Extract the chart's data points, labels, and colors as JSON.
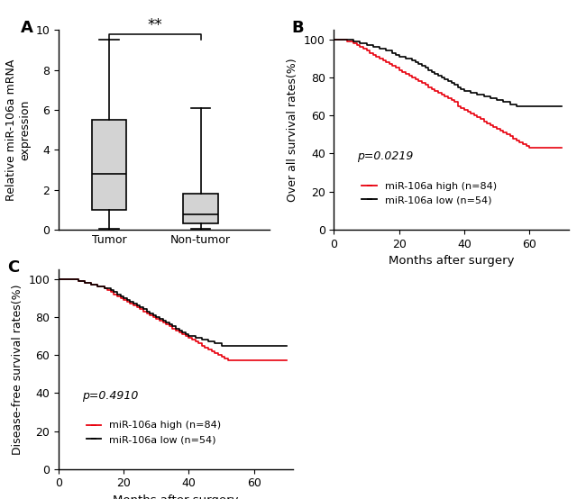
{
  "panel_A": {
    "label": "A",
    "ylabel": "Relative miR-106a mRNA\nexpression",
    "categories": [
      "Tumor",
      "Non-tumor"
    ],
    "tumor_stats": {
      "whisker_low": 0.05,
      "q1": 1.0,
      "median": 2.8,
      "q3": 5.5,
      "whisker_high": 9.5
    },
    "nontumor_stats": {
      "whisker_low": 0.05,
      "q1": 0.3,
      "median": 0.75,
      "q3": 1.8,
      "whisker_high": 6.1
    },
    "ylim": [
      0,
      10
    ],
    "yticks": [
      0,
      2,
      4,
      6,
      8,
      10
    ],
    "significance": "**",
    "box_color": "#d3d3d3",
    "box_edge_color": "#000000"
  },
  "panel_B": {
    "label": "B",
    "ylabel": "Over all survival rates(%)",
    "xlabel": "Months after surgery",
    "ylim": [
      0,
      105
    ],
    "xlim": [
      0,
      72
    ],
    "yticks": [
      0,
      20,
      40,
      60,
      80,
      100
    ],
    "xticks": [
      0,
      20,
      40,
      60
    ],
    "pvalue": "p=0.0219",
    "legend_high": "miR-106a high (n=84)",
    "legend_low": "miR-106a low (n=54)",
    "color_high": "#e8000d",
    "color_low": "#000000",
    "high_x": [
      0,
      2,
      4,
      6,
      7,
      8,
      9,
      10,
      11,
      12,
      13,
      14,
      15,
      16,
      17,
      18,
      19,
      20,
      21,
      22,
      23,
      24,
      25,
      26,
      27,
      28,
      29,
      30,
      31,
      32,
      33,
      34,
      35,
      36,
      37,
      38,
      39,
      40,
      41,
      42,
      43,
      44,
      45,
      46,
      47,
      48,
      49,
      50,
      51,
      52,
      53,
      54,
      55,
      56,
      57,
      58,
      59,
      60,
      61,
      62,
      63,
      64,
      65,
      66,
      67,
      68,
      70
    ],
    "high_y": [
      100,
      100,
      99,
      98,
      97,
      96,
      95,
      94,
      93,
      92,
      91,
      90,
      89,
      88,
      87,
      86,
      85,
      84,
      83,
      82,
      81,
      80,
      79,
      78,
      77,
      76,
      75,
      74,
      73,
      72,
      71,
      70,
      69,
      68,
      67,
      65,
      64,
      63,
      62,
      61,
      60,
      59,
      58,
      57,
      56,
      55,
      54,
      53,
      52,
      51,
      50,
      49,
      48,
      47,
      46,
      45,
      44,
      43,
      43,
      43,
      43,
      43,
      43,
      43,
      43,
      43,
      43
    ],
    "low_x": [
      0,
      4,
      6,
      8,
      10,
      12,
      14,
      16,
      18,
      19,
      20,
      22,
      24,
      25,
      26,
      27,
      28,
      29,
      30,
      31,
      32,
      33,
      34,
      35,
      36,
      37,
      38,
      39,
      40,
      42,
      44,
      46,
      48,
      50,
      52,
      54,
      56,
      58,
      60,
      62,
      64,
      65,
      66,
      67,
      68,
      70
    ],
    "low_y": [
      100,
      100,
      99,
      98,
      97,
      96,
      95,
      94,
      93,
      92,
      91,
      90,
      89,
      88,
      87,
      86,
      85,
      84,
      83,
      82,
      81,
      80,
      79,
      78,
      77,
      76,
      75,
      74,
      73,
      72,
      71,
      70,
      69,
      68,
      67,
      66,
      65,
      65,
      65,
      65,
      65,
      65,
      65,
      65,
      65,
      65
    ]
  },
  "panel_C": {
    "label": "C",
    "ylabel": "Disease-free survival rates(%)",
    "xlabel": "Months after surgery",
    "ylim": [
      0,
      105
    ],
    "xlim": [
      0,
      72
    ],
    "yticks": [
      0,
      20,
      40,
      60,
      80,
      100
    ],
    "xticks": [
      0,
      20,
      40,
      60
    ],
    "pvalue": "p=0.4910",
    "legend_high": "miR-106a high (n=84)",
    "legend_low": "miR-106a low (n=54)",
    "color_high": "#e8000d",
    "color_low": "#000000",
    "high_x": [
      0,
      4,
      6,
      8,
      10,
      12,
      14,
      15,
      16,
      17,
      18,
      19,
      20,
      21,
      22,
      23,
      24,
      25,
      26,
      27,
      28,
      29,
      30,
      31,
      32,
      33,
      34,
      35,
      36,
      37,
      38,
      39,
      40,
      41,
      42,
      43,
      44,
      45,
      46,
      47,
      48,
      49,
      50,
      51,
      52,
      53,
      54,
      55,
      56,
      57,
      58,
      59,
      60,
      61,
      62,
      63,
      64,
      65,
      66,
      67,
      68,
      70
    ],
    "high_y": [
      100,
      100,
      99,
      98,
      97,
      96,
      95,
      94,
      93,
      92,
      91,
      90,
      89,
      88,
      87,
      86,
      85,
      84,
      83,
      82,
      81,
      80,
      79,
      78,
      77,
      76,
      75,
      74,
      73,
      72,
      71,
      70,
      69,
      68,
      67,
      66,
      65,
      64,
      63,
      62,
      61,
      60,
      59,
      58,
      57,
      57,
      57,
      57,
      57,
      57,
      57,
      57,
      57,
      57,
      57,
      57,
      57,
      57,
      57,
      57,
      57,
      57
    ],
    "low_x": [
      0,
      4,
      6,
      8,
      10,
      12,
      14,
      16,
      17,
      18,
      19,
      20,
      21,
      22,
      23,
      24,
      25,
      26,
      27,
      28,
      29,
      30,
      31,
      32,
      33,
      34,
      35,
      36,
      37,
      38,
      39,
      40,
      42,
      44,
      46,
      48,
      50,
      52,
      54,
      56,
      58,
      60,
      62,
      64,
      65,
      66,
      67,
      68,
      70
    ],
    "low_y": [
      100,
      100,
      99,
      98,
      97,
      96,
      95,
      94,
      93,
      92,
      91,
      90,
      89,
      88,
      87,
      86,
      85,
      84,
      83,
      82,
      81,
      80,
      79,
      78,
      77,
      76,
      75,
      74,
      73,
      72,
      71,
      70,
      69,
      68,
      67,
      66,
      65,
      65,
      65,
      65,
      65,
      65,
      65,
      65,
      65,
      65,
      65,
      65,
      65
    ]
  },
  "background_color": "#ffffff"
}
